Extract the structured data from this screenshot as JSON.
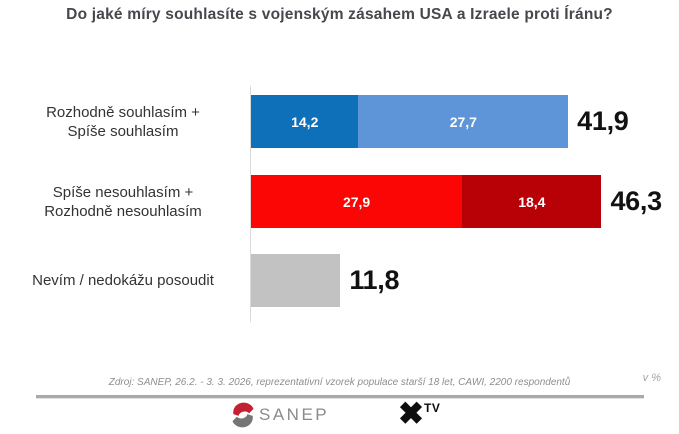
{
  "title": "Do jaké míry souhlasíte s vojenským zásahem USA a Izraele proti Íránu?",
  "chart_data": {
    "type": "bar",
    "orientation": "horizontal",
    "unit": "%",
    "xlim": [
      0,
      55
    ],
    "grid": false,
    "legend": "none",
    "categories": [
      "Rozhodně souhlasím + Spíše souhlasím",
      "Spíše nesouhlasím + Rozhodně nesouhlasím",
      "Nevím / nedokážu posoudit"
    ],
    "rows": [
      {
        "label_lines": [
          "Rozhodně souhlasím +",
          "Spíše souhlasím"
        ],
        "segments": [
          {
            "value": 14.2,
            "label": "14,2",
            "color": "#0e70b8"
          },
          {
            "value": 27.7,
            "label": "27,7",
            "color": "#5e94d8"
          }
        ],
        "total": 41.9,
        "total_label": "41,9"
      },
      {
        "label_lines": [
          "Spíše nesouhlasím +",
          "Rozhodně nesouhlasím"
        ],
        "segments": [
          {
            "value": 27.9,
            "label": "27,9",
            "color": "#fb0505"
          },
          {
            "value": 18.4,
            "label": "18,4",
            "color": "#b80107"
          }
        ],
        "total": 46.3,
        "total_label": "46,3"
      },
      {
        "label_lines": [
          "Nevím / nedokážu posoudit"
        ],
        "segments": [
          {
            "value": 11.8,
            "label": "",
            "color": "#c2c2c2"
          }
        ],
        "total": 11.8,
        "total_label": "11,8"
      }
    ]
  },
  "footer": {
    "source": "Zdroj: SANEP, 26.2. - 3. 3. 2026, reprezentativní vzorek populace starší 18 let, CAWI, 2200 respondentů",
    "unit_note": "v %"
  },
  "logos": {
    "sanep_text": "SANEP",
    "sanep_icon_red": "#c22033",
    "sanep_icon_gray": "#757575",
    "xtv_x": "✖",
    "xtv_text": "TV"
  }
}
